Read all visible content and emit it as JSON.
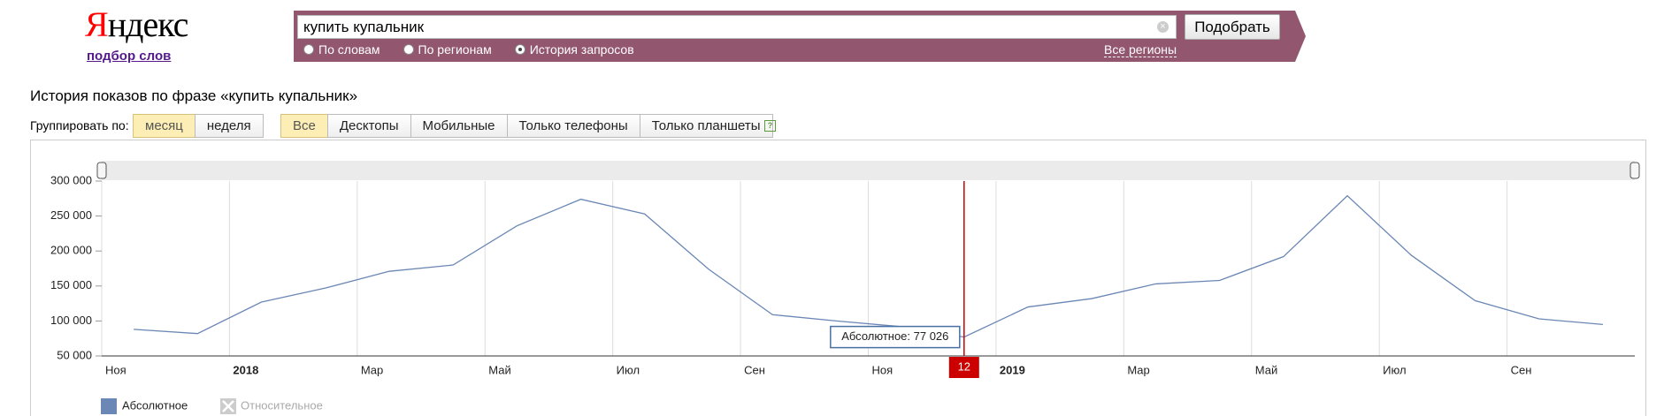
{
  "header": {
    "logo": "Яндекс",
    "subtitle": "подбор слов",
    "query": "купить купальник",
    "button": "Подобрать",
    "modes": [
      "По словам",
      "По регионам",
      "История запросов"
    ],
    "selected_mode": 2,
    "regions": "Все регионы"
  },
  "controls": {
    "group_label": "Группировать по:",
    "group_options": [
      "месяц",
      "неделя"
    ],
    "selected_group": 0,
    "devices": [
      "Все",
      "Десктопы",
      "Мобильные",
      "Только телефоны",
      "Только планшеты"
    ],
    "selected_device": 0,
    "help": "?"
  },
  "chart_data": {
    "type": "line",
    "title": "История показов по фразе «купить купальник»",
    "categories": [
      "Ноя",
      null,
      "2018",
      null,
      "Мар",
      null,
      "Май",
      null,
      "Июл",
      null,
      "Сен",
      null,
      "Ноя",
      null,
      "2019",
      null,
      "Мар",
      null,
      "Май",
      null,
      "Июл",
      null,
      "Сен",
      null
    ],
    "series": [
      {
        "name": "Абсолютное",
        "color": "#6b87b5",
        "values": [
          88000,
          82000,
          127000,
          147000,
          171000,
          180000,
          236000,
          274000,
          253000,
          174000,
          109000,
          100000,
          92000,
          77026,
          120000,
          132000,
          153000,
          158000,
          192000,
          279000,
          194000,
          129000,
          103000,
          95000
        ]
      }
    ],
    "ylim": [
      50000,
      300000
    ],
    "yticks": [
      {
        "value": 50000,
        "label": "50 000"
      },
      {
        "value": 100000,
        "label": "100 000"
      },
      {
        "value": 150000,
        "label": "150 000"
      },
      {
        "value": 200000,
        "label": "200 000"
      },
      {
        "value": 250000,
        "label": "250 000"
      },
      {
        "value": 300000,
        "label": "300 000"
      }
    ],
    "grid": true,
    "highlight": {
      "index": 13,
      "label": "12",
      "tooltip": "Абсолютное: 77 026"
    },
    "legend_disabled": "Относительное"
  }
}
